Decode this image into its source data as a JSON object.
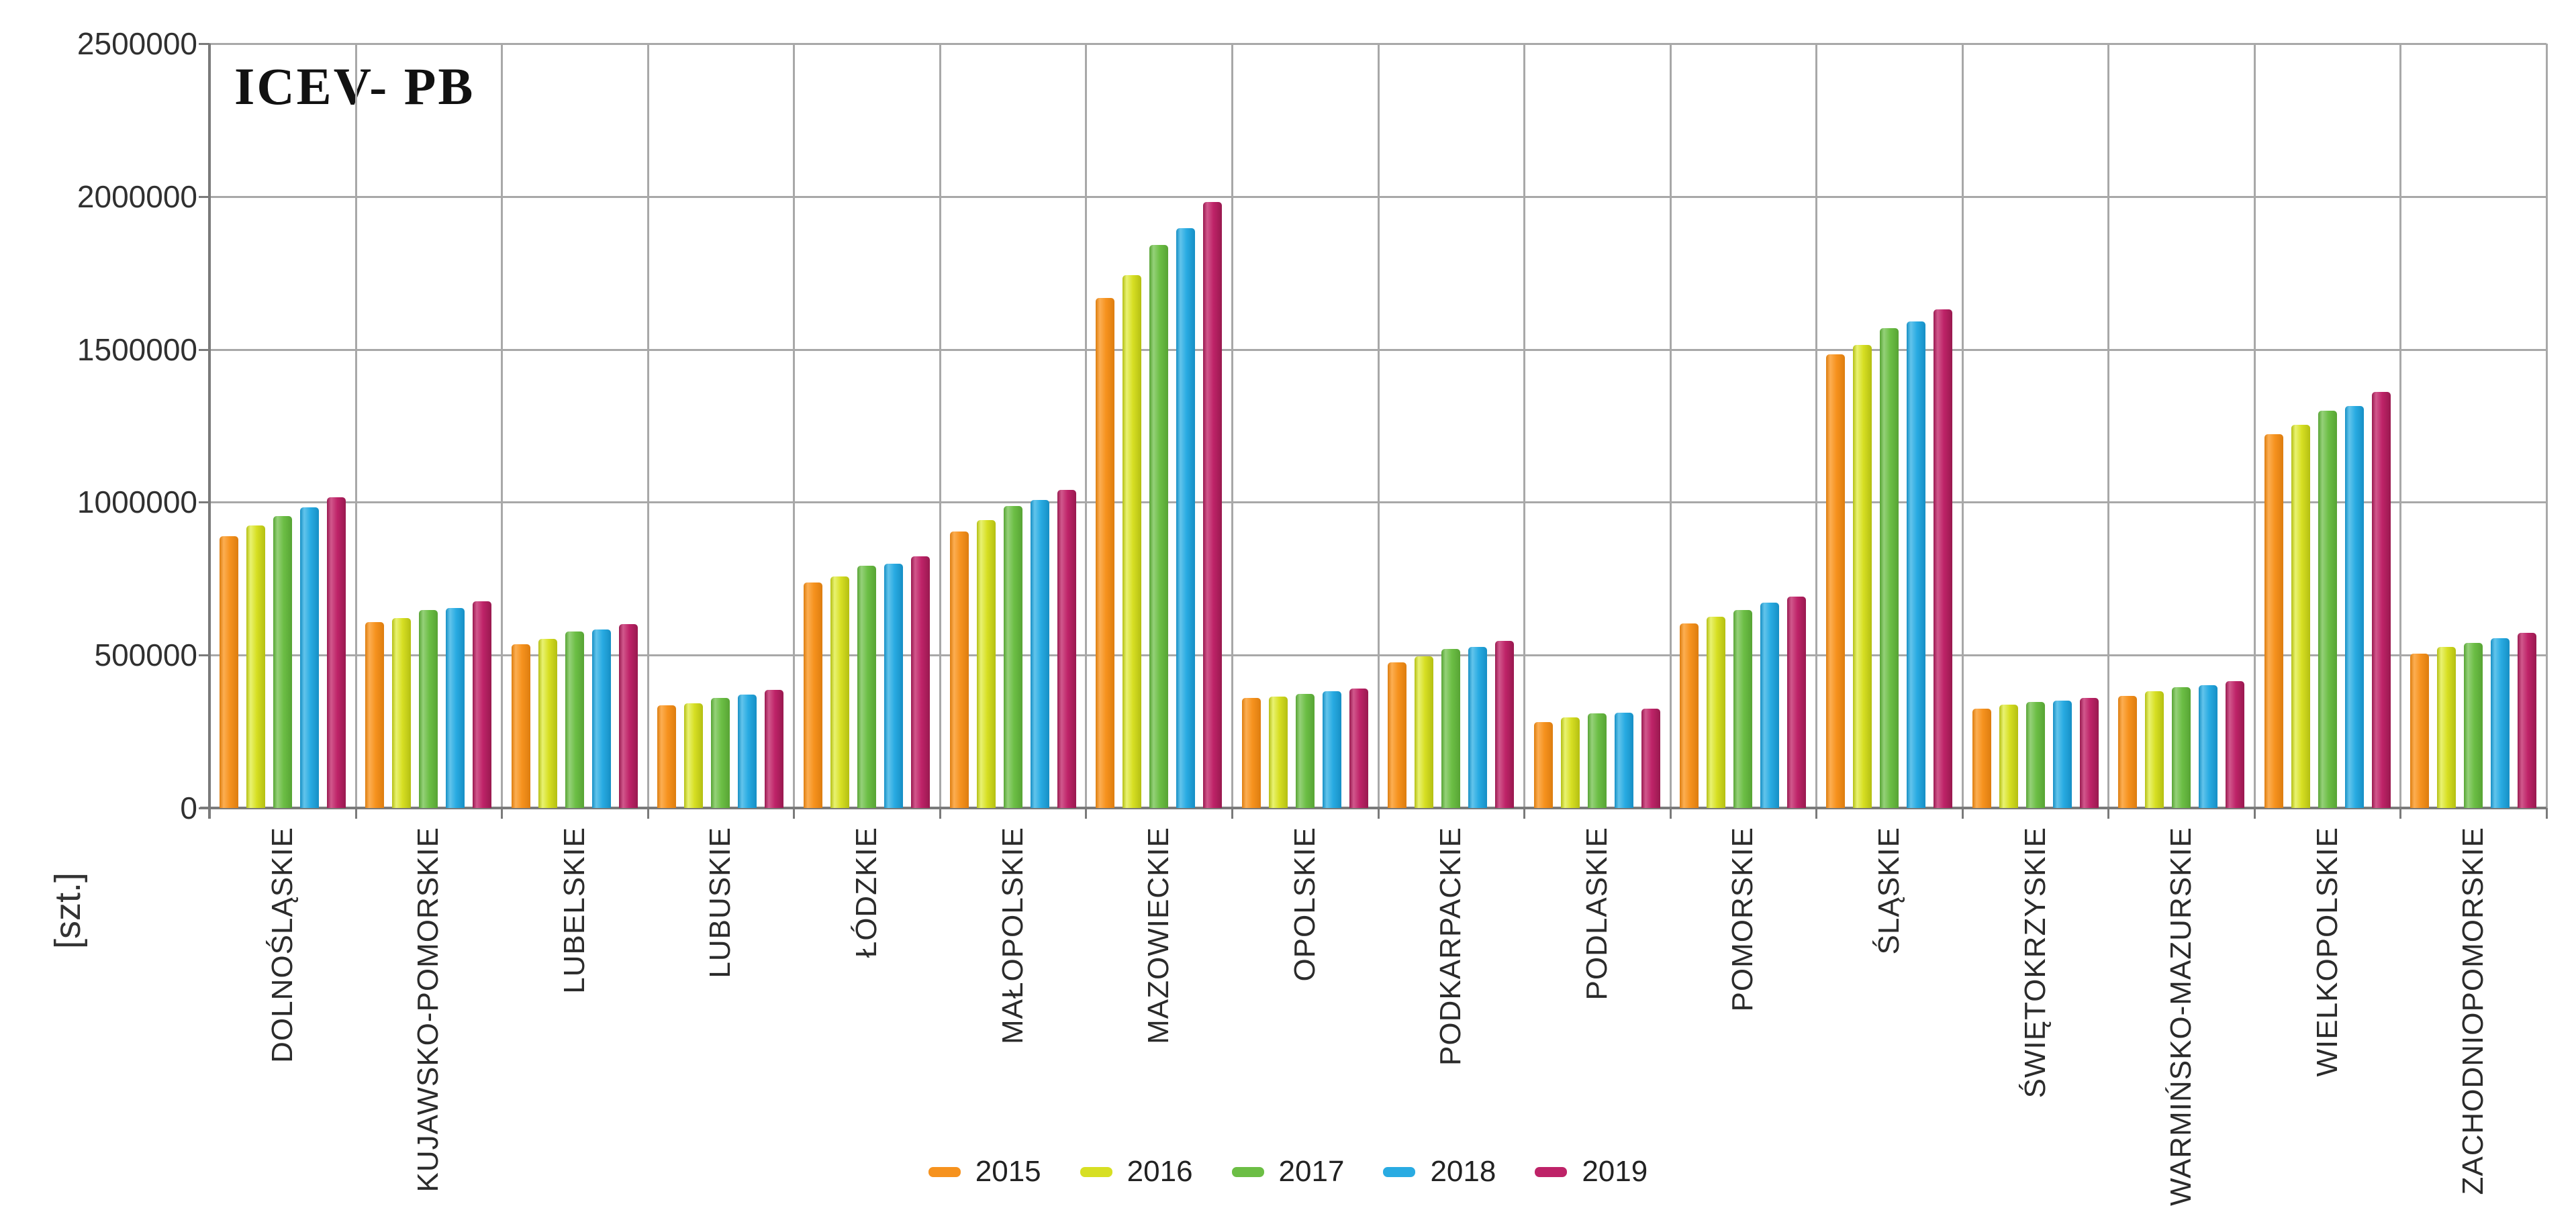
{
  "title": "ICEV- PB",
  "y_axis": {
    "unit_label": "[szt.]",
    "tick_labels": [
      "2500000",
      "2000000",
      "1500000",
      "1000000",
      "500000",
      "0"
    ]
  },
  "chart_data": {
    "type": "bar",
    "title": "ICEV- PB",
    "ylabel": "[szt.]",
    "ylim": [
      0,
      2500000
    ],
    "ytick_step": 500000,
    "grid": true,
    "legend_position": "bottom",
    "categories": [
      "DOLNOŚLĄSKIE",
      "KUJAWSKO-POMORSKIE",
      "LUBELSKIE",
      "LUBUSKIE",
      "ŁÓDZKIE",
      "MAŁOPOLSKIE",
      "MAZOWIECKIE",
      "OPOLSKIE",
      "PODKARPACKIE",
      "PODLASKIE",
      "POMORSKIE",
      "ŚLĄSKIE",
      "ŚWIĘTOKRZYSKIE",
      "WARMIŃSKO-MAZURSKIE",
      "WIELKOPOLSKIE",
      "ZACHODNIOPOMORSKIE"
    ],
    "series": [
      {
        "name": "2015",
        "color": "#F6921E",
        "color_light": "#FCAE52",
        "color_dark": "#DD7D0F",
        "values": [
          890000,
          608000,
          535000,
          335000,
          737000,
          905000,
          1669000,
          359000,
          477000,
          282000,
          604000,
          1484000,
          324000,
          366000,
          1223000,
          504000
        ]
      },
      {
        "name": "2016",
        "color": "#D7DF23",
        "color_light": "#E9F272",
        "color_dark": "#B4BF12",
        "values": [
          923000,
          622000,
          553000,
          342000,
          757000,
          941000,
          1742000,
          364000,
          495000,
          296000,
          626000,
          1515000,
          338000,
          381000,
          1254000,
          526000
        ]
      },
      {
        "name": "2017",
        "color": "#6CBE45",
        "color_light": "#95D179",
        "color_dark": "#57A434",
        "values": [
          954000,
          648000,
          577000,
          360000,
          792000,
          987000,
          1842000,
          373000,
          521000,
          310000,
          648000,
          1569000,
          346000,
          395000,
          1299000,
          541000
        ]
      },
      {
        "name": "2018",
        "color": "#29ABE2",
        "color_light": "#62C4EB",
        "color_dark": "#168FC5",
        "values": [
          983000,
          653000,
          584000,
          371000,
          799000,
          1007000,
          1896000,
          382000,
          526000,
          312000,
          672000,
          1591000,
          352000,
          402000,
          1314000,
          555000
        ]
      },
      {
        "name": "2019",
        "color": "#BE2368",
        "color_light": "#D1588C",
        "color_dark": "#99194F",
        "values": [
          1017000,
          677000,
          601000,
          386000,
          823000,
          1041000,
          1982000,
          390000,
          546000,
          325000,
          692000,
          1631000,
          360000,
          415000,
          1360000,
          572000
        ]
      }
    ]
  }
}
